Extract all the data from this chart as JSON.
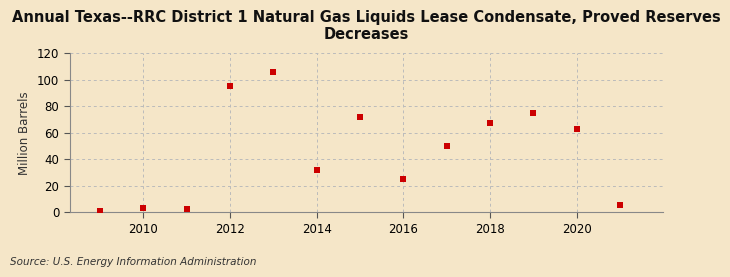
{
  "title": "Annual Texas--RRC District 1 Natural Gas Liquids Lease Condensate, Proved Reserves\nDecreases",
  "ylabel": "Million Barrels",
  "source": "Source: U.S. Energy Information Administration",
  "years": [
    2009,
    2010,
    2011,
    2012,
    2013,
    2014,
    2015,
    2016,
    2017,
    2018,
    2019,
    2020,
    2021
  ],
  "values": [
    1,
    3,
    2,
    95,
    106,
    32,
    72,
    25,
    50,
    67,
    75,
    63,
    5
  ],
  "marker_color": "#cc0000",
  "marker": "s",
  "marker_size": 4,
  "ylim": [
    0,
    120
  ],
  "yticks": [
    0,
    20,
    40,
    60,
    80,
    100,
    120
  ],
  "xticks": [
    2010,
    2012,
    2014,
    2016,
    2018,
    2020
  ],
  "xlim": [
    2008.3,
    2022.0
  ],
  "background_color": "#f5e6c8",
  "grid_color": "#bbbbbb",
  "title_fontsize": 10.5,
  "axis_fontsize": 8.5,
  "source_fontsize": 7.5
}
